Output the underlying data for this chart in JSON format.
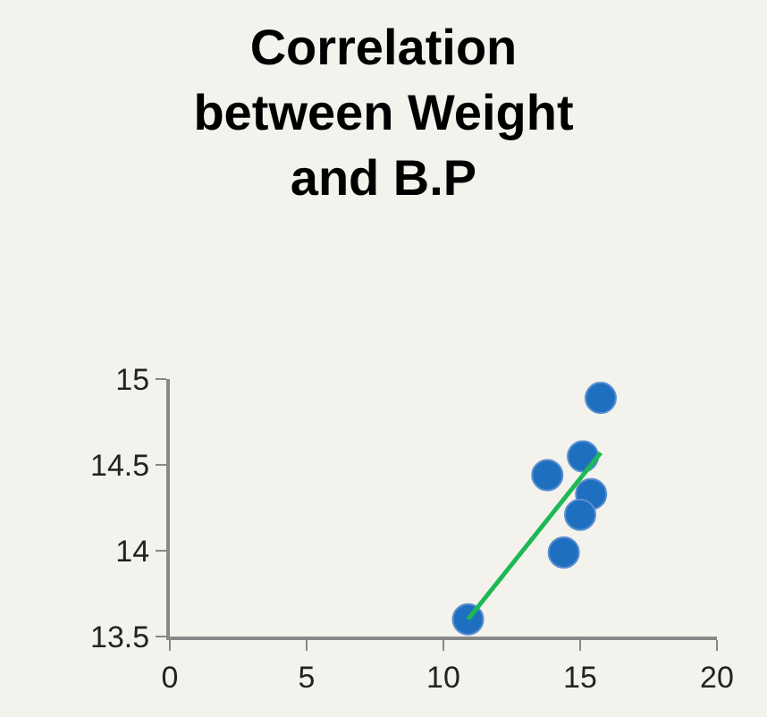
{
  "chart_data": {
    "type": "scatter",
    "title": "Correlation between Weight and B.P",
    "series": [
      {
        "color": "#1f6fc0",
        "x": [
          10.9,
          13.8,
          15.1,
          15.75,
          15.4,
          15.0,
          14.4
        ],
        "values": [
          13.6,
          14.44,
          14.55,
          14.89,
          14.33,
          14.21,
          13.99
        ]
      },
      {
        "type": "line",
        "color": "#1db954",
        "marker": "none",
        "x": [
          10.9,
          15.75
        ],
        "values": [
          13.6,
          14.57
        ]
      }
    ],
    "xlim": [
      0,
      20
    ],
    "xticks": [
      0,
      5,
      10,
      15,
      20
    ],
    "ylim": [
      13.5,
      15
    ],
    "yticks": [
      13.5,
      14,
      14.5,
      15
    ],
    "grid": false,
    "marker": "circle"
  }
}
